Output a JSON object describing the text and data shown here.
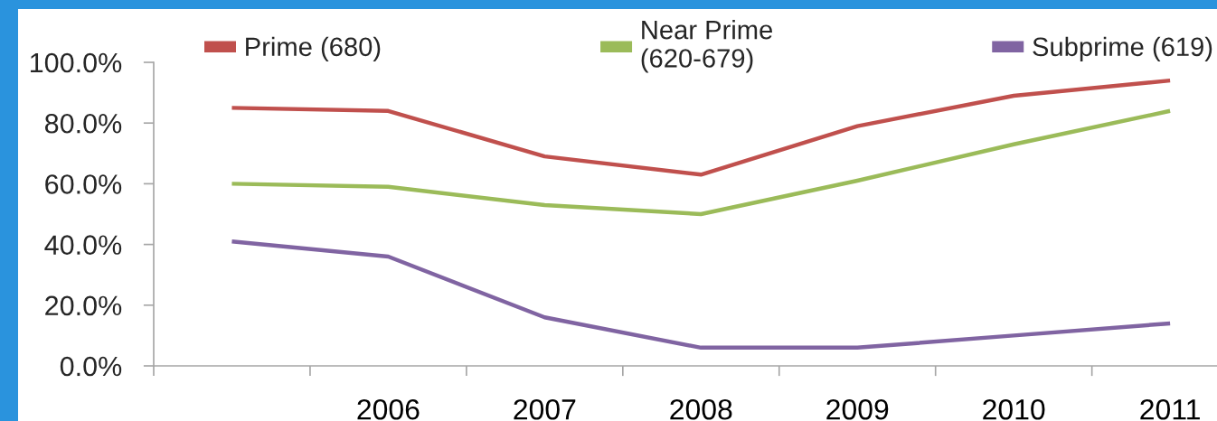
{
  "chart_data": {
    "type": "line",
    "categories": [
      null,
      "2006",
      "2007",
      "2008",
      "2009",
      "2010",
      "2011"
    ],
    "series": [
      {
        "name": "Prime (680)",
        "color": "#c0504d",
        "values": [
          85,
          84,
          69,
          63,
          79,
          89,
          94
        ]
      },
      {
        "name": "Near Prime\n(620-679)",
        "color": "#9bbb59",
        "values": [
          60,
          59,
          53,
          50,
          61,
          73,
          84
        ]
      },
      {
        "name": "Subprime (619)",
        "color": "#8064a2",
        "values": [
          41,
          36,
          16,
          6,
          6,
          10,
          14
        ]
      }
    ],
    "ylim": [
      0,
      100
    ],
    "yticks": [
      {
        "value": 0,
        "label": "0.0%"
      },
      {
        "value": 20,
        "label": "20.0%"
      },
      {
        "value": 40,
        "label": "40.0%"
      },
      {
        "value": 60,
        "label": "60.0%"
      },
      {
        "value": 80,
        "label": "80.0%"
      },
      {
        "value": 100,
        "label": "100.0%"
      }
    ],
    "legend": "top",
    "line_style": "solid"
  }
}
